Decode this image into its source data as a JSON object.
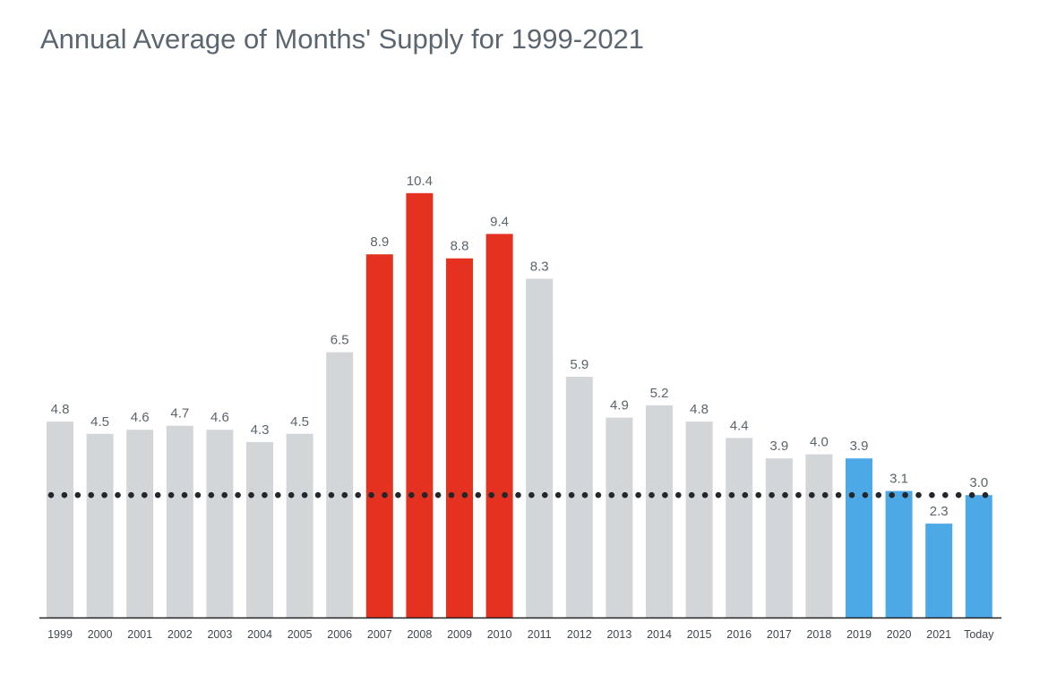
{
  "chart_data": {
    "type": "bar",
    "title": "Annual Average of Months' Supply for 1999-2021",
    "xlabel": "",
    "ylabel": "",
    "ylim": [
      0,
      11.5
    ],
    "grid": false,
    "categories": [
      "1999",
      "2000",
      "2001",
      "2002",
      "2003",
      "2004",
      "2005",
      "2006",
      "2007",
      "2008",
      "2009",
      "2010",
      "2011",
      "2012",
      "2013",
      "2014",
      "2015",
      "2016",
      "2017",
      "2018",
      "2019",
      "2020",
      "2021",
      "Today"
    ],
    "values": [
      4.8,
      4.5,
      4.6,
      4.7,
      4.6,
      4.3,
      4.5,
      6.5,
      8.9,
      10.4,
      8.8,
      9.4,
      8.3,
      5.9,
      4.9,
      5.2,
      4.8,
      4.4,
      3.9,
      4.0,
      3.9,
      3.1,
      2.3,
      3.0
    ],
    "value_labels": [
      "4.8",
      "4.5",
      "4.6",
      "4.7",
      "4.6",
      "4.3",
      "4.5",
      "6.5",
      "8.9",
      "10.4",
      "8.8",
      "9.4",
      "8.3",
      "5.9",
      "4.9",
      "5.2",
      "4.8",
      "4.4",
      "3.9",
      "4.0",
      "3.9",
      "3.1",
      "2.3",
      "3.0"
    ],
    "bar_groups": [
      "neutral",
      "neutral",
      "neutral",
      "neutral",
      "neutral",
      "neutral",
      "neutral",
      "neutral",
      "high",
      "high",
      "high",
      "high",
      "neutral",
      "neutral",
      "neutral",
      "neutral",
      "neutral",
      "neutral",
      "neutral",
      "neutral",
      "recent",
      "recent",
      "recent",
      "recent"
    ],
    "colors": {
      "neutral": "#d2d6d9",
      "high": "#e5311f",
      "recent": "#4da9e6"
    },
    "reference_line": {
      "value": 3.0,
      "style": "dotted",
      "color": "#23272b"
    },
    "axis_color": "#222222"
  }
}
